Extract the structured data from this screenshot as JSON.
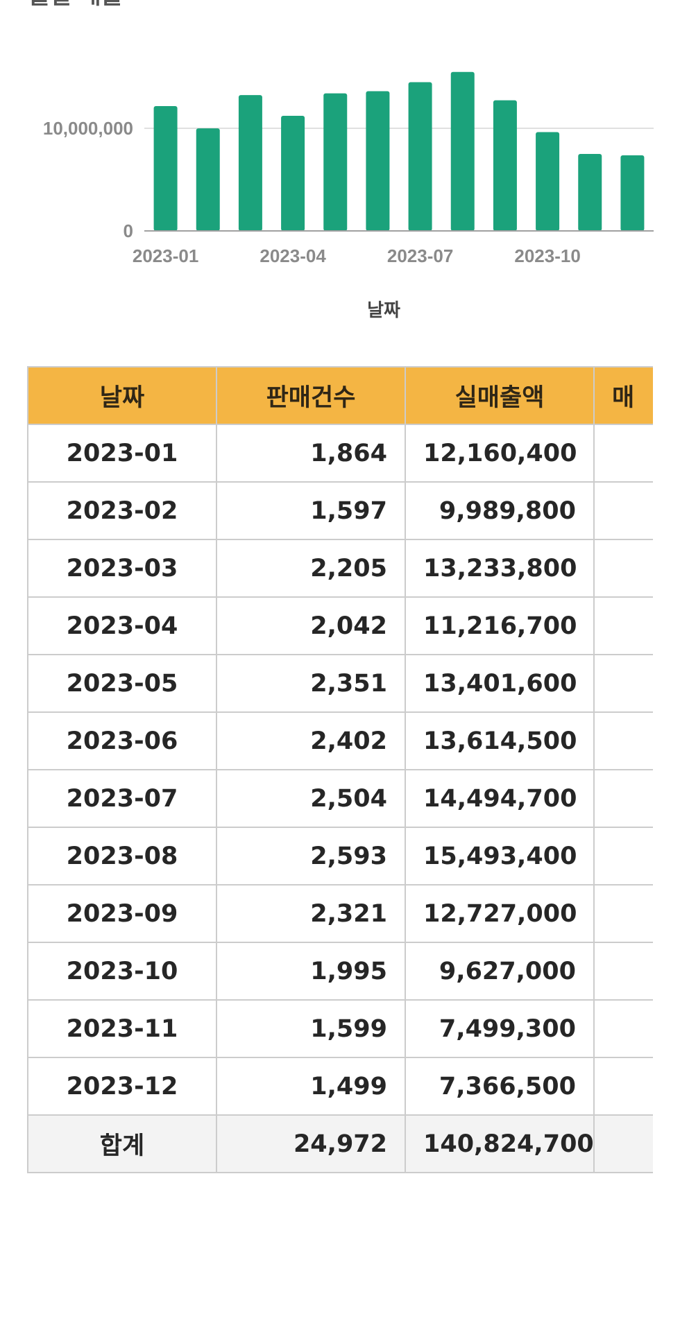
{
  "section_title": "월별 매출",
  "chart_data": {
    "type": "bar",
    "categories": [
      "2023-01",
      "2023-02",
      "2023-03",
      "2023-04",
      "2023-05",
      "2023-06",
      "2023-07",
      "2023-08",
      "2023-09",
      "2023-10",
      "2023-11",
      "2023-12"
    ],
    "values": [
      12160400,
      9989800,
      13233800,
      11216700,
      13401600,
      13614500,
      14494700,
      15493400,
      12727000,
      9627000,
      7499300,
      7366500
    ],
    "xticks": [
      "2023-01",
      "2023-04",
      "2023-07",
      "2023-10"
    ],
    "yticks": [
      0,
      10000000
    ],
    "ytick_labels": [
      "0",
      "10,000,000"
    ],
    "ylim": [
      0,
      16000000
    ],
    "xlabel": "날짜",
    "ylabel": "",
    "grid": true,
    "bar_color": "#1ba27b"
  },
  "table": {
    "columns": [
      "날짜",
      "판매건수",
      "실매출액",
      "매"
    ],
    "rows": [
      {
        "date": "2023-01",
        "count": "1,864",
        "sales": "12,160,400"
      },
      {
        "date": "2023-02",
        "count": "1,597",
        "sales": "9,989,800"
      },
      {
        "date": "2023-03",
        "count": "2,205",
        "sales": "13,233,800"
      },
      {
        "date": "2023-04",
        "count": "2,042",
        "sales": "11,216,700"
      },
      {
        "date": "2023-05",
        "count": "2,351",
        "sales": "13,401,600"
      },
      {
        "date": "2023-06",
        "count": "2,402",
        "sales": "13,614,500"
      },
      {
        "date": "2023-07",
        "count": "2,504",
        "sales": "14,494,700"
      },
      {
        "date": "2023-08",
        "count": "2,593",
        "sales": "15,493,400"
      },
      {
        "date": "2023-09",
        "count": "2,321",
        "sales": "12,727,000"
      },
      {
        "date": "2023-10",
        "count": "1,995",
        "sales": "9,627,000"
      },
      {
        "date": "2023-11",
        "count": "1,599",
        "sales": "7,499,300"
      },
      {
        "date": "2023-12",
        "count": "1,499",
        "sales": "7,366,500"
      }
    ],
    "total": {
      "label": "합계",
      "count": "24,972",
      "sales": "140,824,700"
    }
  },
  "colors": {
    "header_bg": "#f4b544",
    "bar": "#1ba27b",
    "total_bg": "#f3f3f3",
    "border": "#cccccc"
  }
}
